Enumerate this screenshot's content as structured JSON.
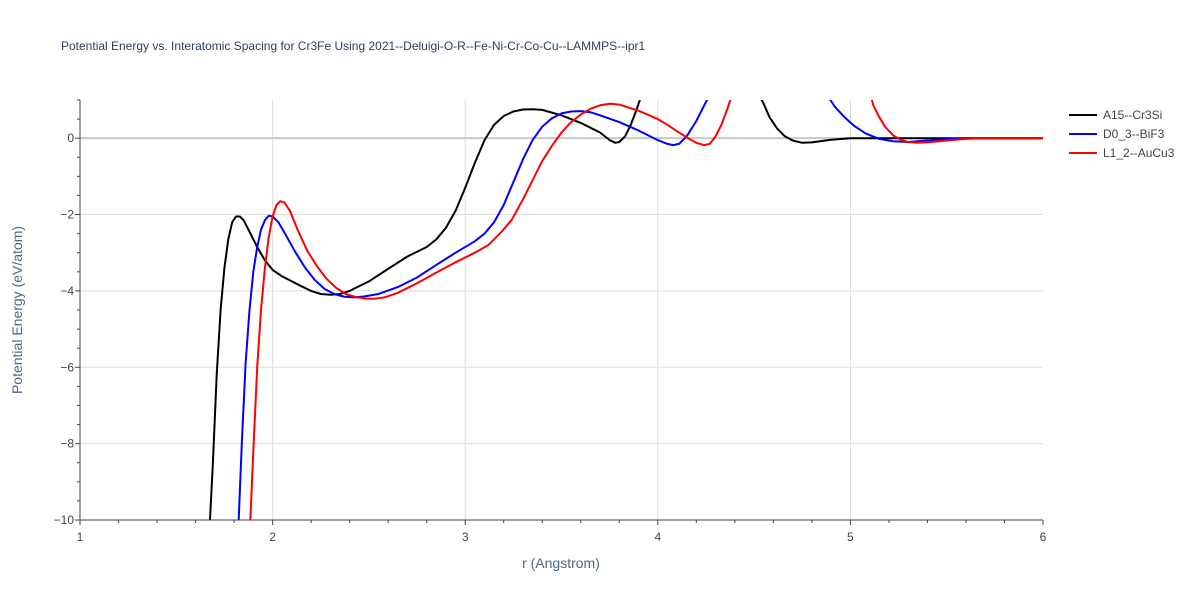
{
  "chart_data": {
    "type": "line",
    "title": "Potential Energy vs. Interatomic Spacing for Cr3Fe Using 2021--Deluigi-O-R--Fe-Ni-Cr-Co-Cu--LAMMPS--ipr1",
    "xlabel": "r (Angstrom)",
    "ylabel": "Potential Energy (eV/atom)",
    "xlim": [
      1,
      6
    ],
    "ylim": [
      -10,
      1
    ],
    "x_ticks": [
      1,
      2,
      3,
      4,
      5,
      6
    ],
    "y_ticks": [
      0,
      -2,
      -4,
      -6,
      -8,
      -10
    ],
    "x_tick_labels": [
      "1",
      "2",
      "3",
      "4",
      "5",
      "6"
    ],
    "y_tick_labels": [
      "0",
      "−2",
      "−4",
      "−6",
      "−8",
      "−10"
    ],
    "grid": true,
    "legend_placement": "top-right-outside",
    "series": [
      {
        "name": "A15--Cr3Si",
        "color": "#000000",
        "points": [
          [
            1.67,
            -10.5
          ],
          [
            1.69,
            -8.5
          ],
          [
            1.71,
            -6.2
          ],
          [
            1.73,
            -4.5
          ],
          [
            1.75,
            -3.4
          ],
          [
            1.77,
            -2.65
          ],
          [
            1.79,
            -2.2
          ],
          [
            1.81,
            -2.05
          ],
          [
            1.83,
            -2.05
          ],
          [
            1.85,
            -2.15
          ],
          [
            1.88,
            -2.45
          ],
          [
            1.92,
            -2.85
          ],
          [
            1.96,
            -3.2
          ],
          [
            2.0,
            -3.45
          ],
          [
            2.05,
            -3.62
          ],
          [
            2.1,
            -3.75
          ],
          [
            2.15,
            -3.88
          ],
          [
            2.2,
            -4.0
          ],
          [
            2.25,
            -4.08
          ],
          [
            2.3,
            -4.1
          ],
          [
            2.35,
            -4.08
          ],
          [
            2.4,
            -4.0
          ],
          [
            2.5,
            -3.75
          ],
          [
            2.6,
            -3.42
          ],
          [
            2.7,
            -3.1
          ],
          [
            2.8,
            -2.85
          ],
          [
            2.85,
            -2.65
          ],
          [
            2.9,
            -2.35
          ],
          [
            2.95,
            -1.9
          ],
          [
            3.0,
            -1.3
          ],
          [
            3.05,
            -0.65
          ],
          [
            3.1,
            -0.05
          ],
          [
            3.15,
            0.35
          ],
          [
            3.2,
            0.58
          ],
          [
            3.25,
            0.7
          ],
          [
            3.3,
            0.75
          ],
          [
            3.35,
            0.76
          ],
          [
            3.4,
            0.74
          ],
          [
            3.5,
            0.6
          ],
          [
            3.6,
            0.4
          ],
          [
            3.7,
            0.15
          ],
          [
            3.75,
            -0.05
          ],
          [
            3.78,
            -0.12
          ],
          [
            3.8,
            -0.1
          ],
          [
            3.83,
            0.05
          ],
          [
            3.86,
            0.35
          ],
          [
            3.89,
            0.75
          ],
          [
            3.92,
            1.2
          ]
        ]
      },
      {
        "name": "A15--Cr3Si",
        "color": "#000000",
        "points": [
          [
            4.52,
            1.2
          ],
          [
            4.55,
            0.9
          ],
          [
            4.58,
            0.55
          ],
          [
            4.62,
            0.25
          ],
          [
            4.66,
            0.05
          ],
          [
            4.7,
            -0.06
          ],
          [
            4.75,
            -0.12
          ],
          [
            4.8,
            -0.11
          ],
          [
            4.9,
            -0.04
          ],
          [
            5.0,
            0.0
          ],
          [
            5.2,
            0.0
          ],
          [
            6.0,
            0.0
          ]
        ]
      },
      {
        "name": "D0_3--BiF3",
        "color": "#0000ff",
        "points": [
          [
            1.82,
            -10.5
          ],
          [
            1.84,
            -8.0
          ],
          [
            1.86,
            -5.9
          ],
          [
            1.88,
            -4.5
          ],
          [
            1.9,
            -3.5
          ],
          [
            1.92,
            -2.85
          ],
          [
            1.94,
            -2.4
          ],
          [
            1.96,
            -2.15
          ],
          [
            1.98,
            -2.03
          ],
          [
            2.0,
            -2.05
          ],
          [
            2.03,
            -2.2
          ],
          [
            2.07,
            -2.55
          ],
          [
            2.12,
            -3.0
          ],
          [
            2.17,
            -3.4
          ],
          [
            2.22,
            -3.72
          ],
          [
            2.27,
            -3.95
          ],
          [
            2.32,
            -4.08
          ],
          [
            2.37,
            -4.15
          ],
          [
            2.42,
            -4.17
          ],
          [
            2.47,
            -4.15
          ],
          [
            2.55,
            -4.08
          ],
          [
            2.65,
            -3.9
          ],
          [
            2.75,
            -3.65
          ],
          [
            2.85,
            -3.32
          ],
          [
            2.95,
            -3.0
          ],
          [
            3.05,
            -2.7
          ],
          [
            3.1,
            -2.5
          ],
          [
            3.15,
            -2.2
          ],
          [
            3.2,
            -1.75
          ],
          [
            3.25,
            -1.15
          ],
          [
            3.3,
            -0.55
          ],
          [
            3.35,
            -0.05
          ],
          [
            3.4,
            0.3
          ],
          [
            3.45,
            0.52
          ],
          [
            3.5,
            0.65
          ],
          [
            3.55,
            0.7
          ],
          [
            3.6,
            0.71
          ],
          [
            3.65,
            0.68
          ],
          [
            3.7,
            0.6
          ],
          [
            3.8,
            0.42
          ],
          [
            3.9,
            0.2
          ],
          [
            4.0,
            -0.05
          ],
          [
            4.05,
            -0.15
          ],
          [
            4.08,
            -0.18
          ],
          [
            4.11,
            -0.15
          ],
          [
            4.15,
            0.05
          ],
          [
            4.2,
            0.45
          ],
          [
            4.25,
            0.95
          ],
          [
            4.28,
            1.2
          ]
        ]
      },
      {
        "name": "D0_3--BiF3",
        "color": "#0000ff",
        "points": [
          [
            4.87,
            1.2
          ],
          [
            4.92,
            0.82
          ],
          [
            4.97,
            0.55
          ],
          [
            5.02,
            0.32
          ],
          [
            5.08,
            0.12
          ],
          [
            5.15,
            -0.02
          ],
          [
            5.22,
            -0.08
          ],
          [
            5.3,
            -0.1
          ],
          [
            5.4,
            -0.06
          ],
          [
            5.5,
            -0.02
          ],
          [
            5.6,
            0.0
          ],
          [
            6.0,
            0.0
          ]
        ]
      },
      {
        "name": "L1_2--AuCu3",
        "color": "#ff0000",
        "points": [
          [
            1.88,
            -10.5
          ],
          [
            1.9,
            -8.2
          ],
          [
            1.92,
            -6.0
          ],
          [
            1.94,
            -4.5
          ],
          [
            1.96,
            -3.4
          ],
          [
            1.98,
            -2.6
          ],
          [
            2.0,
            -2.05
          ],
          [
            2.02,
            -1.75
          ],
          [
            2.04,
            -1.65
          ],
          [
            2.06,
            -1.68
          ],
          [
            2.09,
            -1.9
          ],
          [
            2.13,
            -2.4
          ],
          [
            2.18,
            -2.95
          ],
          [
            2.23,
            -3.35
          ],
          [
            2.28,
            -3.68
          ],
          [
            2.33,
            -3.92
          ],
          [
            2.38,
            -4.08
          ],
          [
            2.43,
            -4.16
          ],
          [
            2.48,
            -4.2
          ],
          [
            2.52,
            -4.21
          ],
          [
            2.58,
            -4.17
          ],
          [
            2.65,
            -4.05
          ],
          [
            2.75,
            -3.8
          ],
          [
            2.85,
            -3.52
          ],
          [
            2.95,
            -3.25
          ],
          [
            3.05,
            -3.0
          ],
          [
            3.12,
            -2.8
          ],
          [
            3.18,
            -2.5
          ],
          [
            3.24,
            -2.15
          ],
          [
            3.3,
            -1.6
          ],
          [
            3.35,
            -1.1
          ],
          [
            3.4,
            -0.6
          ],
          [
            3.45,
            -0.2
          ],
          [
            3.5,
            0.15
          ],
          [
            3.55,
            0.42
          ],
          [
            3.6,
            0.62
          ],
          [
            3.65,
            0.77
          ],
          [
            3.7,
            0.86
          ],
          [
            3.75,
            0.9
          ],
          [
            3.8,
            0.88
          ],
          [
            3.9,
            0.72
          ],
          [
            4.0,
            0.5
          ],
          [
            4.05,
            0.35
          ],
          [
            4.1,
            0.18
          ],
          [
            4.15,
            0.02
          ],
          [
            4.2,
            -0.12
          ],
          [
            4.24,
            -0.18
          ],
          [
            4.27,
            -0.15
          ],
          [
            4.3,
            0.05
          ],
          [
            4.33,
            0.35
          ],
          [
            4.36,
            0.75
          ],
          [
            4.39,
            1.2
          ]
        ]
      },
      {
        "name": "L1_2--AuCu3",
        "color": "#ff0000",
        "points": [
          [
            5.1,
            1.2
          ],
          [
            5.12,
            0.85
          ],
          [
            5.15,
            0.55
          ],
          [
            5.18,
            0.3
          ],
          [
            5.22,
            0.08
          ],
          [
            5.26,
            -0.04
          ],
          [
            5.3,
            -0.1
          ],
          [
            5.35,
            -0.12
          ],
          [
            5.42,
            -0.1
          ],
          [
            5.5,
            -0.06
          ],
          [
            5.6,
            -0.02
          ],
          [
            5.7,
            0.0
          ],
          [
            6.0,
            0.0
          ]
        ]
      }
    ],
    "legend": [
      {
        "name": "A15--Cr3Si",
        "color": "#000000"
      },
      {
        "name": "D0_3--BiF3",
        "color": "#0000ff"
      },
      {
        "name": "L1_2--AuCu3",
        "color": "#ff0000"
      }
    ]
  }
}
